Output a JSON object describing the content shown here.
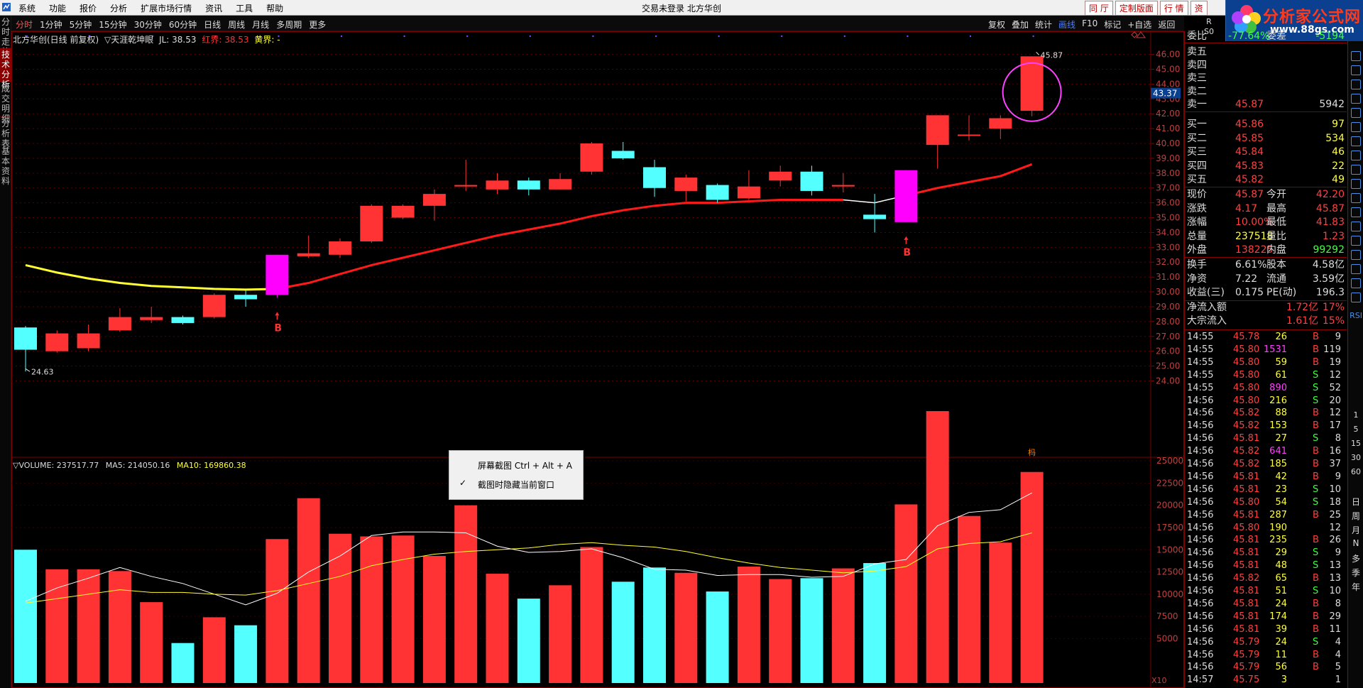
{
  "window": {
    "title": "交易未登录 北方华创"
  },
  "menu": [
    "系统",
    "功能",
    "报价",
    "分析",
    "扩展市场行情",
    "资讯",
    "工具",
    "帮助"
  ],
  "top_buttons": [
    "同 厅",
    "定制版面",
    "行 情",
    "资"
  ],
  "brand": {
    "name": "分析家公式网",
    "url": "www.88gs.com"
  },
  "rs_badge": {
    "a": "R",
    "b": "S0"
  },
  "timeframes": [
    "分时",
    "1分钟",
    "5分钟",
    "15分钟",
    "30分钟",
    "60分钟",
    "日线",
    "周线",
    "月线",
    "多周期",
    "更多"
  ],
  "toolbar_right": [
    "复权",
    "叠加",
    "统计",
    "画线",
    "F10",
    "标记",
    "+自选",
    "返回"
  ],
  "left_tabs": [
    "分时走势",
    "技术分析",
    "成交明细",
    "分析表",
    "基本资料"
  ],
  "indicator_header": {
    "name": "北方华创(日线 前复权)",
    "formula": "▽天涯乾坤眼",
    "jl": "JL: 38.53",
    "red_label": "红界: 38.53",
    "yellow_label": "黄界: -"
  },
  "price_axis": [
    "46.00",
    "45.00",
    "44.00",
    "43.00",
    "42.00",
    "41.00",
    "40.00",
    "39.00",
    "38.00",
    "37.00",
    "36.00",
    "35.00",
    "34.00",
    "33.00",
    "32.00",
    "31.00",
    "30.00",
    "29.00",
    "28.00",
    "27.00",
    "26.00",
    "25.00",
    "24.00"
  ],
  "crosshair_price": "43.37",
  "high_label": "45.87",
  "low_label": "24.63",
  "buy_marker": "B",
  "chip_marker": "杩",
  "volume_header": {
    "vol": "▽VOLUME: 237517.77",
    "ma5": "MA5: 214050.16",
    "ma10": "MA10: 169860.38"
  },
  "volume_axis": [
    "25000",
    "22500",
    "20000",
    "17500",
    "15000",
    "12500",
    "10000",
    "7500",
    "5000"
  ],
  "volume_unit": "X10",
  "context_menu": {
    "item1": "屏幕截图 Ctrl + Alt + A",
    "item2": "截图时隐藏当前窗口"
  },
  "colors": {
    "up": "#ff3333",
    "down": "#54ffff",
    "signal": "#ff00ff",
    "ma_red": "#ff1a1a",
    "ma_yellow": "#ffff33"
  },
  "chart_data": {
    "type": "candlestick",
    "candles": [
      {
        "o": 27.6,
        "h": 27.7,
        "l": 24.63,
        "c": 26.1,
        "v": 15000
      },
      {
        "o": 26.0,
        "h": 27.4,
        "l": 25.9,
        "c": 27.2,
        "v": 12800
      },
      {
        "o": 26.2,
        "h": 27.8,
        "l": 26.0,
        "c": 27.2,
        "v": 12800
      },
      {
        "o": 27.4,
        "h": 28.9,
        "l": 27.3,
        "c": 28.3,
        "v": 12600
      },
      {
        "o": 28.1,
        "h": 29.0,
        "l": 27.9,
        "c": 28.3,
        "v": 9100
      },
      {
        "o": 28.3,
        "h": 28.4,
        "l": 27.8,
        "c": 27.9,
        "v": 4500
      },
      {
        "o": 28.3,
        "h": 29.9,
        "l": 28.2,
        "c": 29.8,
        "v": 7400
      },
      {
        "o": 29.8,
        "h": 30.1,
        "l": 29.0,
        "c": 29.5,
        "v": 6500
      },
      {
        "o": 29.8,
        "h": 32.5,
        "l": 29.6,
        "c": 32.5,
        "v": 16200
      },
      {
        "o": 32.4,
        "h": 33.8,
        "l": 32.3,
        "c": 32.6,
        "v": 20800
      },
      {
        "o": 32.5,
        "h": 33.6,
        "l": 32.3,
        "c": 33.4,
        "v": 16800
      },
      {
        "o": 33.4,
        "h": 35.9,
        "l": 33.3,
        "c": 35.8,
        "v": 16500
      },
      {
        "o": 35.0,
        "h": 35.9,
        "l": 34.9,
        "c": 35.8,
        "v": 16600
      },
      {
        "o": 35.8,
        "h": 36.9,
        "l": 34.8,
        "c": 36.6,
        "v": 14300
      },
      {
        "o": 37.1,
        "h": 38.9,
        "l": 36.8,
        "c": 37.2,
        "v": 20000
      },
      {
        "o": 36.9,
        "h": 38.0,
        "l": 36.6,
        "c": 37.5,
        "v": 12300
      },
      {
        "o": 37.5,
        "h": 37.7,
        "l": 36.5,
        "c": 36.9,
        "v": 9500
      },
      {
        "o": 36.9,
        "h": 38.0,
        "l": 36.9,
        "c": 37.6,
        "v": 11000
      },
      {
        "o": 38.1,
        "h": 40.1,
        "l": 37.9,
        "c": 40.0,
        "v": 15300
      },
      {
        "o": 39.5,
        "h": 40.1,
        "l": 38.9,
        "c": 39.0,
        "v": 11400
      },
      {
        "o": 38.4,
        "h": 38.9,
        "l": 36.4,
        "c": 37.0,
        "v": 13000
      },
      {
        "o": 36.8,
        "h": 37.9,
        "l": 36.1,
        "c": 37.7,
        "v": 12400
      },
      {
        "o": 37.2,
        "h": 37.3,
        "l": 36.0,
        "c": 36.2,
        "v": 10300
      },
      {
        "o": 36.3,
        "h": 38.2,
        "l": 36.2,
        "c": 37.1,
        "v": 13100
      },
      {
        "o": 37.5,
        "h": 38.5,
        "l": 37.1,
        "c": 38.1,
        "v": 11700
      },
      {
        "o": 38.1,
        "h": 38.5,
        "l": 36.5,
        "c": 36.8,
        "v": 11800
      },
      {
        "o": 37.1,
        "h": 38.0,
        "l": 36.7,
        "c": 37.2,
        "v": 12900
      },
      {
        "o": 35.2,
        "h": 36.6,
        "l": 34.0,
        "c": 34.9,
        "v": 13500
      },
      {
        "o": 34.7,
        "h": 38.2,
        "l": 34.7,
        "c": 38.2,
        "v": 20100
      },
      {
        "o": 39.9,
        "h": 41.9,
        "l": 38.3,
        "c": 41.9,
        "v": 30600
      },
      {
        "o": 40.6,
        "h": 41.9,
        "l": 40.2,
        "c": 40.6,
        "v": 18800
      },
      {
        "o": 41.0,
        "h": 41.9,
        "l": 40.3,
        "c": 41.7,
        "v": 15800
      },
      {
        "o": 42.2,
        "h": 45.87,
        "l": 41.83,
        "c": 45.87,
        "v": 23750
      }
    ],
    "signals": [
      "",
      "",
      "",
      "",
      "",
      "",
      "",
      "",
      "B",
      "",
      "",
      "",
      "",
      "",
      "",
      "",
      "",
      "",
      "",
      "",
      "",
      "",
      "",
      "",
      "",
      "",
      "",
      "",
      "B",
      "",
      "",
      "",
      ""
    ],
    "ma_line": [
      31.8,
      31.3,
      30.9,
      30.6,
      30.4,
      30.3,
      30.2,
      30.15,
      30.2,
      30.6,
      31.2,
      31.8,
      32.3,
      32.8,
      33.3,
      33.8,
      34.2,
      34.6,
      35.1,
      35.5,
      35.8,
      36.0,
      36.0,
      36.1,
      36.2,
      36.2,
      36.2,
      36.0,
      36.5,
      37.0,
      37.4,
      37.8,
      38.6
    ],
    "vol_ma5": [
      9200,
      10700,
      11800,
      13000,
      12000,
      11200,
      10000,
      8800,
      10100,
      12500,
      14300,
      16600,
      17000,
      17000,
      16900,
      15400,
      14700,
      14800,
      15100,
      14100,
      12800,
      12700,
      12100,
      12200,
      12200,
      11900,
      12000,
      13400,
      13900,
      17700,
      19200,
      19500,
      21400
    ],
    "vol_ma10": [
      9000,
      9500,
      10000,
      10500,
      10200,
      10200,
      10000,
      9900,
      10400,
      11200,
      12000,
      13200,
      13900,
      14500,
      14800,
      15000,
      15200,
      15600,
      15800,
      15500,
      15300,
      14800,
      14100,
      13500,
      13000,
      12700,
      12400,
      12600,
      13100,
      15100,
      15700,
      15900,
      16900
    ],
    "price_range": [
      23.4,
      46.7
    ],
    "vol_range": [
      0,
      30600
    ]
  },
  "quote": {
    "committee": {
      "label": "委比",
      "value": "-77.64%",
      "label2": "委差",
      "value2": "-5194"
    },
    "asks": [
      {
        "label": "卖五",
        "price": "",
        "vol": ""
      },
      {
        "label": "卖四",
        "price": "",
        "vol": ""
      },
      {
        "label": "卖三",
        "price": "",
        "vol": ""
      },
      {
        "label": "卖二",
        "price": "",
        "vol": ""
      },
      {
        "label": "卖一",
        "price": "45.87",
        "vol": "5942"
      }
    ],
    "bids": [
      {
        "label": "买一",
        "price": "45.86",
        "vol": "97"
      },
      {
        "label": "买二",
        "price": "45.85",
        "vol": "534"
      },
      {
        "label": "买三",
        "price": "45.84",
        "vol": "46"
      },
      {
        "label": "买四",
        "price": "45.83",
        "vol": "22"
      },
      {
        "label": "买五",
        "price": "45.82",
        "vol": "49"
      }
    ],
    "stats": [
      {
        "l1": "现价",
        "v1": "45.87",
        "l2": "今开",
        "v2": "42.20"
      },
      {
        "l1": "涨跌",
        "v1": "4.17",
        "l2": "最高",
        "v2": "45.87"
      },
      {
        "l1": "涨幅",
        "v1": "10.00%",
        "l2": "最低",
        "v2": "41.83"
      },
      {
        "l1": "总量",
        "v1": "237518",
        "l2": "量比",
        "v2": "1.23"
      },
      {
        "l1": "外盘",
        "v1": "138225",
        "l2": "内盘",
        "v2": "99292"
      }
    ],
    "stats2": [
      {
        "l1": "换手",
        "v1": "6.61%",
        "l2": "股本",
        "v2": "4.58亿"
      },
      {
        "l1": "净资",
        "v1": "7.22",
        "l2": "流通",
        "v2": "3.59亿"
      },
      {
        "l1": "收益(三)",
        "v1": "0.175",
        "l2": "PE(动)",
        "v2": "196.3"
      }
    ],
    "flows": [
      {
        "l": "净流入额",
        "v": "1.72亿",
        "p": "17%"
      },
      {
        "l": "大宗流入",
        "v": "1.61亿",
        "p": "15%"
      }
    ]
  },
  "ticks": [
    [
      "14:55",
      "45.78",
      "26",
      "B",
      "9"
    ],
    [
      "14:55",
      "45.80",
      "1531",
      "B",
      "119"
    ],
    [
      "14:55",
      "45.80",
      "59",
      "B",
      "19"
    ],
    [
      "14:55",
      "45.80",
      "61",
      "S",
      "12"
    ],
    [
      "14:55",
      "45.80",
      "890",
      "S",
      "52"
    ],
    [
      "14:56",
      "45.80",
      "216",
      "S",
      "20"
    ],
    [
      "14:56",
      "45.82",
      "88",
      "B",
      "12"
    ],
    [
      "14:56",
      "45.82",
      "153",
      "B",
      "17"
    ],
    [
      "14:56",
      "45.81",
      "27",
      "S",
      "8"
    ],
    [
      "14:56",
      "45.82",
      "641",
      "B",
      "16"
    ],
    [
      "14:56",
      "45.82",
      "185",
      "B",
      "37"
    ],
    [
      "14:56",
      "45.81",
      "42",
      "B",
      "9"
    ],
    [
      "14:56",
      "45.81",
      "23",
      "S",
      "10"
    ],
    [
      "14:56",
      "45.80",
      "54",
      "S",
      "18"
    ],
    [
      "14:56",
      "45.81",
      "287",
      "B",
      "25"
    ],
    [
      "14:56",
      "45.80",
      "190",
      "",
      "12"
    ],
    [
      "14:56",
      "45.81",
      "235",
      "B",
      "26"
    ],
    [
      "14:56",
      "45.81",
      "29",
      "S",
      "9"
    ],
    [
      "14:56",
      "45.81",
      "48",
      "S",
      "13"
    ],
    [
      "14:56",
      "45.82",
      "65",
      "B",
      "13"
    ],
    [
      "14:56",
      "45.81",
      "51",
      "S",
      "10"
    ],
    [
      "14:56",
      "45.81",
      "24",
      "B",
      "8"
    ],
    [
      "14:56",
      "45.81",
      "174",
      "B",
      "29"
    ],
    [
      "14:56",
      "45.81",
      "39",
      "B",
      "11"
    ],
    [
      "14:56",
      "45.79",
      "24",
      "S",
      "4"
    ],
    [
      "14:56",
      "45.79",
      "11",
      "B",
      "4"
    ],
    [
      "14:56",
      "45.79",
      "56",
      "B",
      "5"
    ],
    [
      "14:57",
      "45.75",
      "3",
      "",
      "1"
    ]
  ],
  "side_icons": [
    "日",
    "周",
    "月",
    "N",
    "多",
    "季",
    "年"
  ],
  "side_nums": [
    "1",
    "5",
    "15",
    "30",
    "60"
  ]
}
